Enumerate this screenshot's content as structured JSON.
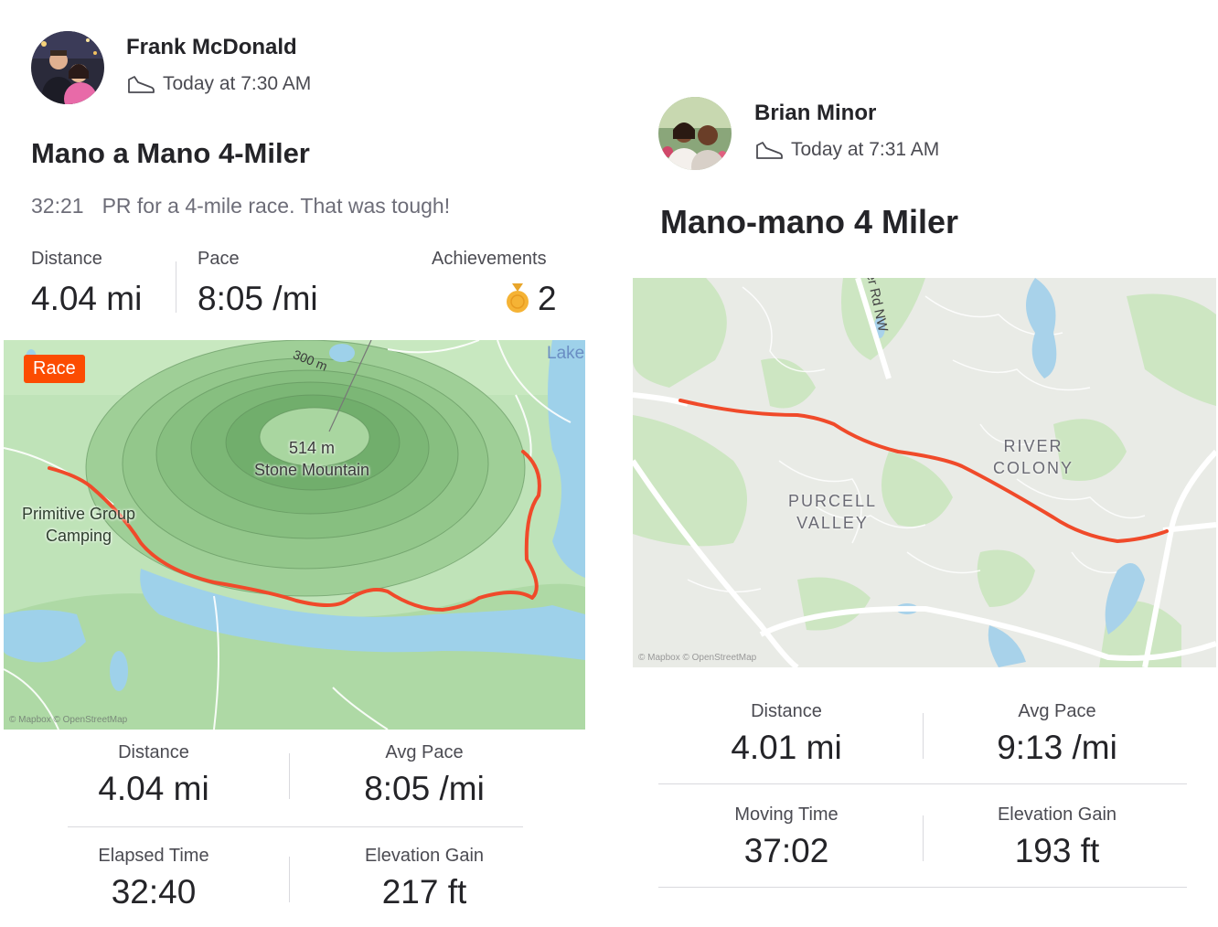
{
  "left": {
    "athlete": "Frank McDonald",
    "timestamp": "Today at 7:30 AM",
    "title": "Mano a Mano 4-Miler",
    "description_time": "32:21",
    "description_text": "PR for a 4-mile race.  That was tough!",
    "top_stats": {
      "distance_label": "Distance",
      "distance_value": "4.04 mi",
      "pace_label": "Pace",
      "pace_value": "8:05 /mi",
      "achievements_label": "Achievements",
      "achievements_value": "2"
    },
    "map": {
      "badge": "Race",
      "contour_label": "300 m",
      "peak_elevation": "514 m",
      "peak_name": "Stone Mountain",
      "camp_line1": "Primitive Group",
      "camp_line2": "Camping",
      "lake_label": "Lake",
      "attribution": "© Mapbox © OpenStreetMap"
    },
    "stats": [
      {
        "label": "Distance",
        "value": "4.04 mi"
      },
      {
        "label": "Avg Pace",
        "value": "8:05 /mi"
      },
      {
        "label": "Elapsed Time",
        "value": "32:40"
      },
      {
        "label": "Elevation Gain",
        "value": "217 ft"
      }
    ]
  },
  "right": {
    "athlete": "Brian Minor",
    "timestamp": "Today at 7:31 AM",
    "title": "Mano-mano 4 Miler",
    "map": {
      "road_label": "er Rd NW",
      "hood1_line1": "RIVER",
      "hood1_line2": "COLONY",
      "hood2_line1": "PURCELL",
      "hood2_line2": "VALLEY",
      "attribution": "© Mapbox © OpenStreetMap"
    },
    "stats": [
      {
        "label": "Distance",
        "value": "4.01 mi"
      },
      {
        "label": "Avg Pace",
        "value": "9:13 /mi"
      },
      {
        "label": "Moving Time",
        "value": "37:02"
      },
      {
        "label": "Elevation Gain",
        "value": "193 ft"
      }
    ]
  },
  "colors": {
    "accent": "#fc4c02",
    "route": "#f04a2a",
    "medal": "#f5b335"
  }
}
